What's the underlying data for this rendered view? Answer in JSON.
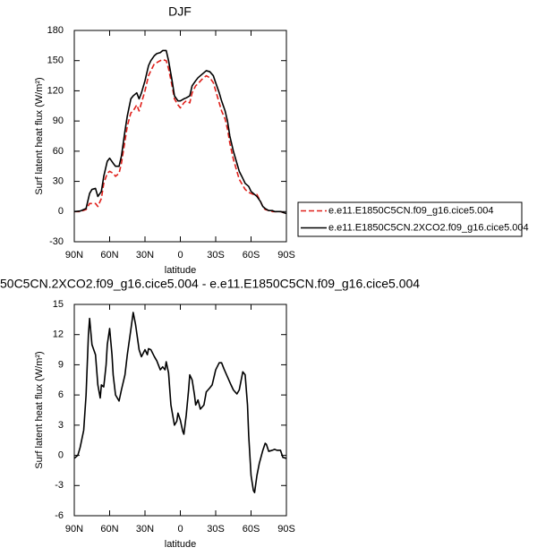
{
  "chart_data": [
    {
      "type": "line",
      "title": "DJF",
      "xlabel": "latitude",
      "ylabel": "Surf latent heat flux (W/m²)",
      "xlim": [
        90,
        -90
      ],
      "ylim": [
        -30,
        180
      ],
      "xticks": [
        {
          "value": 90,
          "label": "90N"
        },
        {
          "value": 60,
          "label": "60N"
        },
        {
          "value": 30,
          "label": "30N"
        },
        0,
        {
          "value": -30,
          "label": "30S"
        },
        {
          "value": -60,
          "label": "60S"
        },
        {
          "value": -90,
          "label": "90S"
        }
      ],
      "yticks": [
        -30,
        0,
        30,
        60,
        90,
        120,
        150,
        180
      ],
      "legend": "right",
      "x": [
        90,
        85,
        80,
        77,
        75,
        72,
        70,
        67,
        65,
        62,
        60,
        57,
        55,
        52,
        50,
        47,
        45,
        42,
        40,
        37,
        35,
        33,
        30,
        27,
        25,
        22,
        20,
        17,
        15,
        12,
        10,
        7,
        5,
        2,
        0,
        -3,
        -5,
        -8,
        -10,
        -13,
        -15,
        -18,
        -20,
        -22,
        -25,
        -28,
        -30,
        -33,
        -35,
        -38,
        -40,
        -42,
        -45,
        -48,
        -50,
        -53,
        -55,
        -58,
        -60,
        -62,
        -65,
        -68,
        -70,
        -72,
        -75,
        -78,
        -80,
        -85,
        -90
      ],
      "series": [
        {
          "name": "e.e11.E1850C5CN.f09_g16.cice5.004",
          "color": "#e0201b",
          "dash": true,
          "values": [
            0,
            0,
            2,
            8,
            8,
            8,
            5,
            13,
            28,
            38,
            40,
            38,
            35,
            38,
            48,
            70,
            85,
            98,
            100,
            106,
            100,
            108,
            120,
            135,
            140,
            147,
            148,
            150,
            151,
            150,
            142,
            125,
            112,
            106,
            103,
            108,
            110,
            108,
            118,
            125,
            127,
            131,
            133,
            135,
            133,
            128,
            120,
            108,
            100,
            92,
            82,
            68,
            52,
            40,
            32,
            26,
            22,
            19,
            18,
            17,
            17,
            10,
            5,
            2,
            1,
            0,
            0,
            0,
            -2
          ]
        },
        {
          "name": "e.e11.E1850C5CN.2XCO2.f09_g16.cice5.004",
          "color": "#000000",
          "dash": false,
          "values": [
            0,
            0.5,
            3,
            18,
            22,
            23,
            15,
            20,
            35,
            50,
            53,
            48,
            45,
            45,
            55,
            80,
            95,
            112,
            115,
            118,
            112,
            118,
            130,
            145,
            150,
            155,
            157,
            158,
            160,
            160,
            150,
            130,
            115,
            110,
            110,
            112,
            113,
            115,
            125,
            130,
            133,
            136,
            138,
            140,
            139,
            135,
            128,
            118,
            110,
            100,
            90,
            75,
            60,
            48,
            40,
            33,
            28,
            25,
            20,
            18,
            15,
            10,
            5,
            3,
            1,
            1,
            0,
            0,
            -2
          ]
        }
      ]
    },
    {
      "type": "line",
      "title": "50C5CN.2XCO2.f09_g16.cice5.004 - e.e11.E1850C5CN.f09_g16.cice5.004",
      "xlabel": "latitude",
      "ylabel": "Surf latent heat flux (W/m²)",
      "xlim": [
        90,
        -90
      ],
      "ylim": [
        -6,
        15
      ],
      "xticks": [
        {
          "value": 90,
          "label": "90N"
        },
        {
          "value": 60,
          "label": "60N"
        },
        {
          "value": 30,
          "label": "30N"
        },
        0,
        {
          "value": -30,
          "label": "30S"
        },
        {
          "value": -60,
          "label": "60S"
        },
        {
          "value": -90,
          "label": "90S"
        }
      ],
      "yticks": [
        -6,
        -3,
        0,
        3,
        6,
        9,
        12,
        15
      ],
      "x": [
        90,
        87,
        85,
        82,
        80,
        78,
        77,
        75,
        72,
        70,
        68,
        67,
        65,
        63,
        62,
        60,
        58,
        57,
        55,
        52,
        50,
        47,
        45,
        42,
        40,
        38,
        35,
        33,
        30,
        28,
        27,
        25,
        22,
        20,
        17,
        15,
        13,
        12,
        10,
        8,
        5,
        3,
        2,
        0,
        -2,
        -3,
        -5,
        -7,
        -8,
        -10,
        -12,
        -13,
        -15,
        -17,
        -20,
        -22,
        -25,
        -27,
        -30,
        -33,
        -35,
        -37,
        -40,
        -43,
        -45,
        -48,
        -50,
        -53,
        -55,
        -57,
        -58,
        -60,
        -62,
        -63,
        -65,
        -67,
        -70,
        -72,
        -73,
        -75,
        -78,
        -80,
        -82,
        -85,
        -87,
        -90
      ],
      "series": [
        {
          "color": "#000000",
          "dash": false,
          "values": [
            -0.3,
            0,
            0.8,
            2.5,
            6,
            12,
            13.6,
            11,
            10,
            7,
            5.7,
            7,
            6.8,
            9,
            11,
            12.6,
            10,
            8,
            6,
            5.4,
            6.5,
            8,
            10,
            12.5,
            14.2,
            13,
            10.5,
            9.8,
            10.5,
            10,
            10.6,
            10.5,
            9.8,
            9.4,
            8.5,
            8.8,
            8.5,
            9.3,
            8.2,
            5,
            3,
            3.4,
            4.2,
            3.5,
            2.4,
            2.1,
            4,
            6.5,
            8,
            7.5,
            6,
            5,
            5.5,
            4.6,
            5,
            6.3,
            6.7,
            7,
            8.5,
            9.2,
            9.2,
            8.6,
            7.8,
            7,
            6.5,
            6.1,
            6.5,
            8.3,
            8,
            5,
            2,
            -2,
            -3.5,
            -3.7,
            -2,
            -0.8,
            0.5,
            1.2,
            1.1,
            0.4,
            0.5,
            0.6,
            0.5,
            0.5,
            -0.2,
            -0.3
          ]
        }
      ]
    }
  ]
}
